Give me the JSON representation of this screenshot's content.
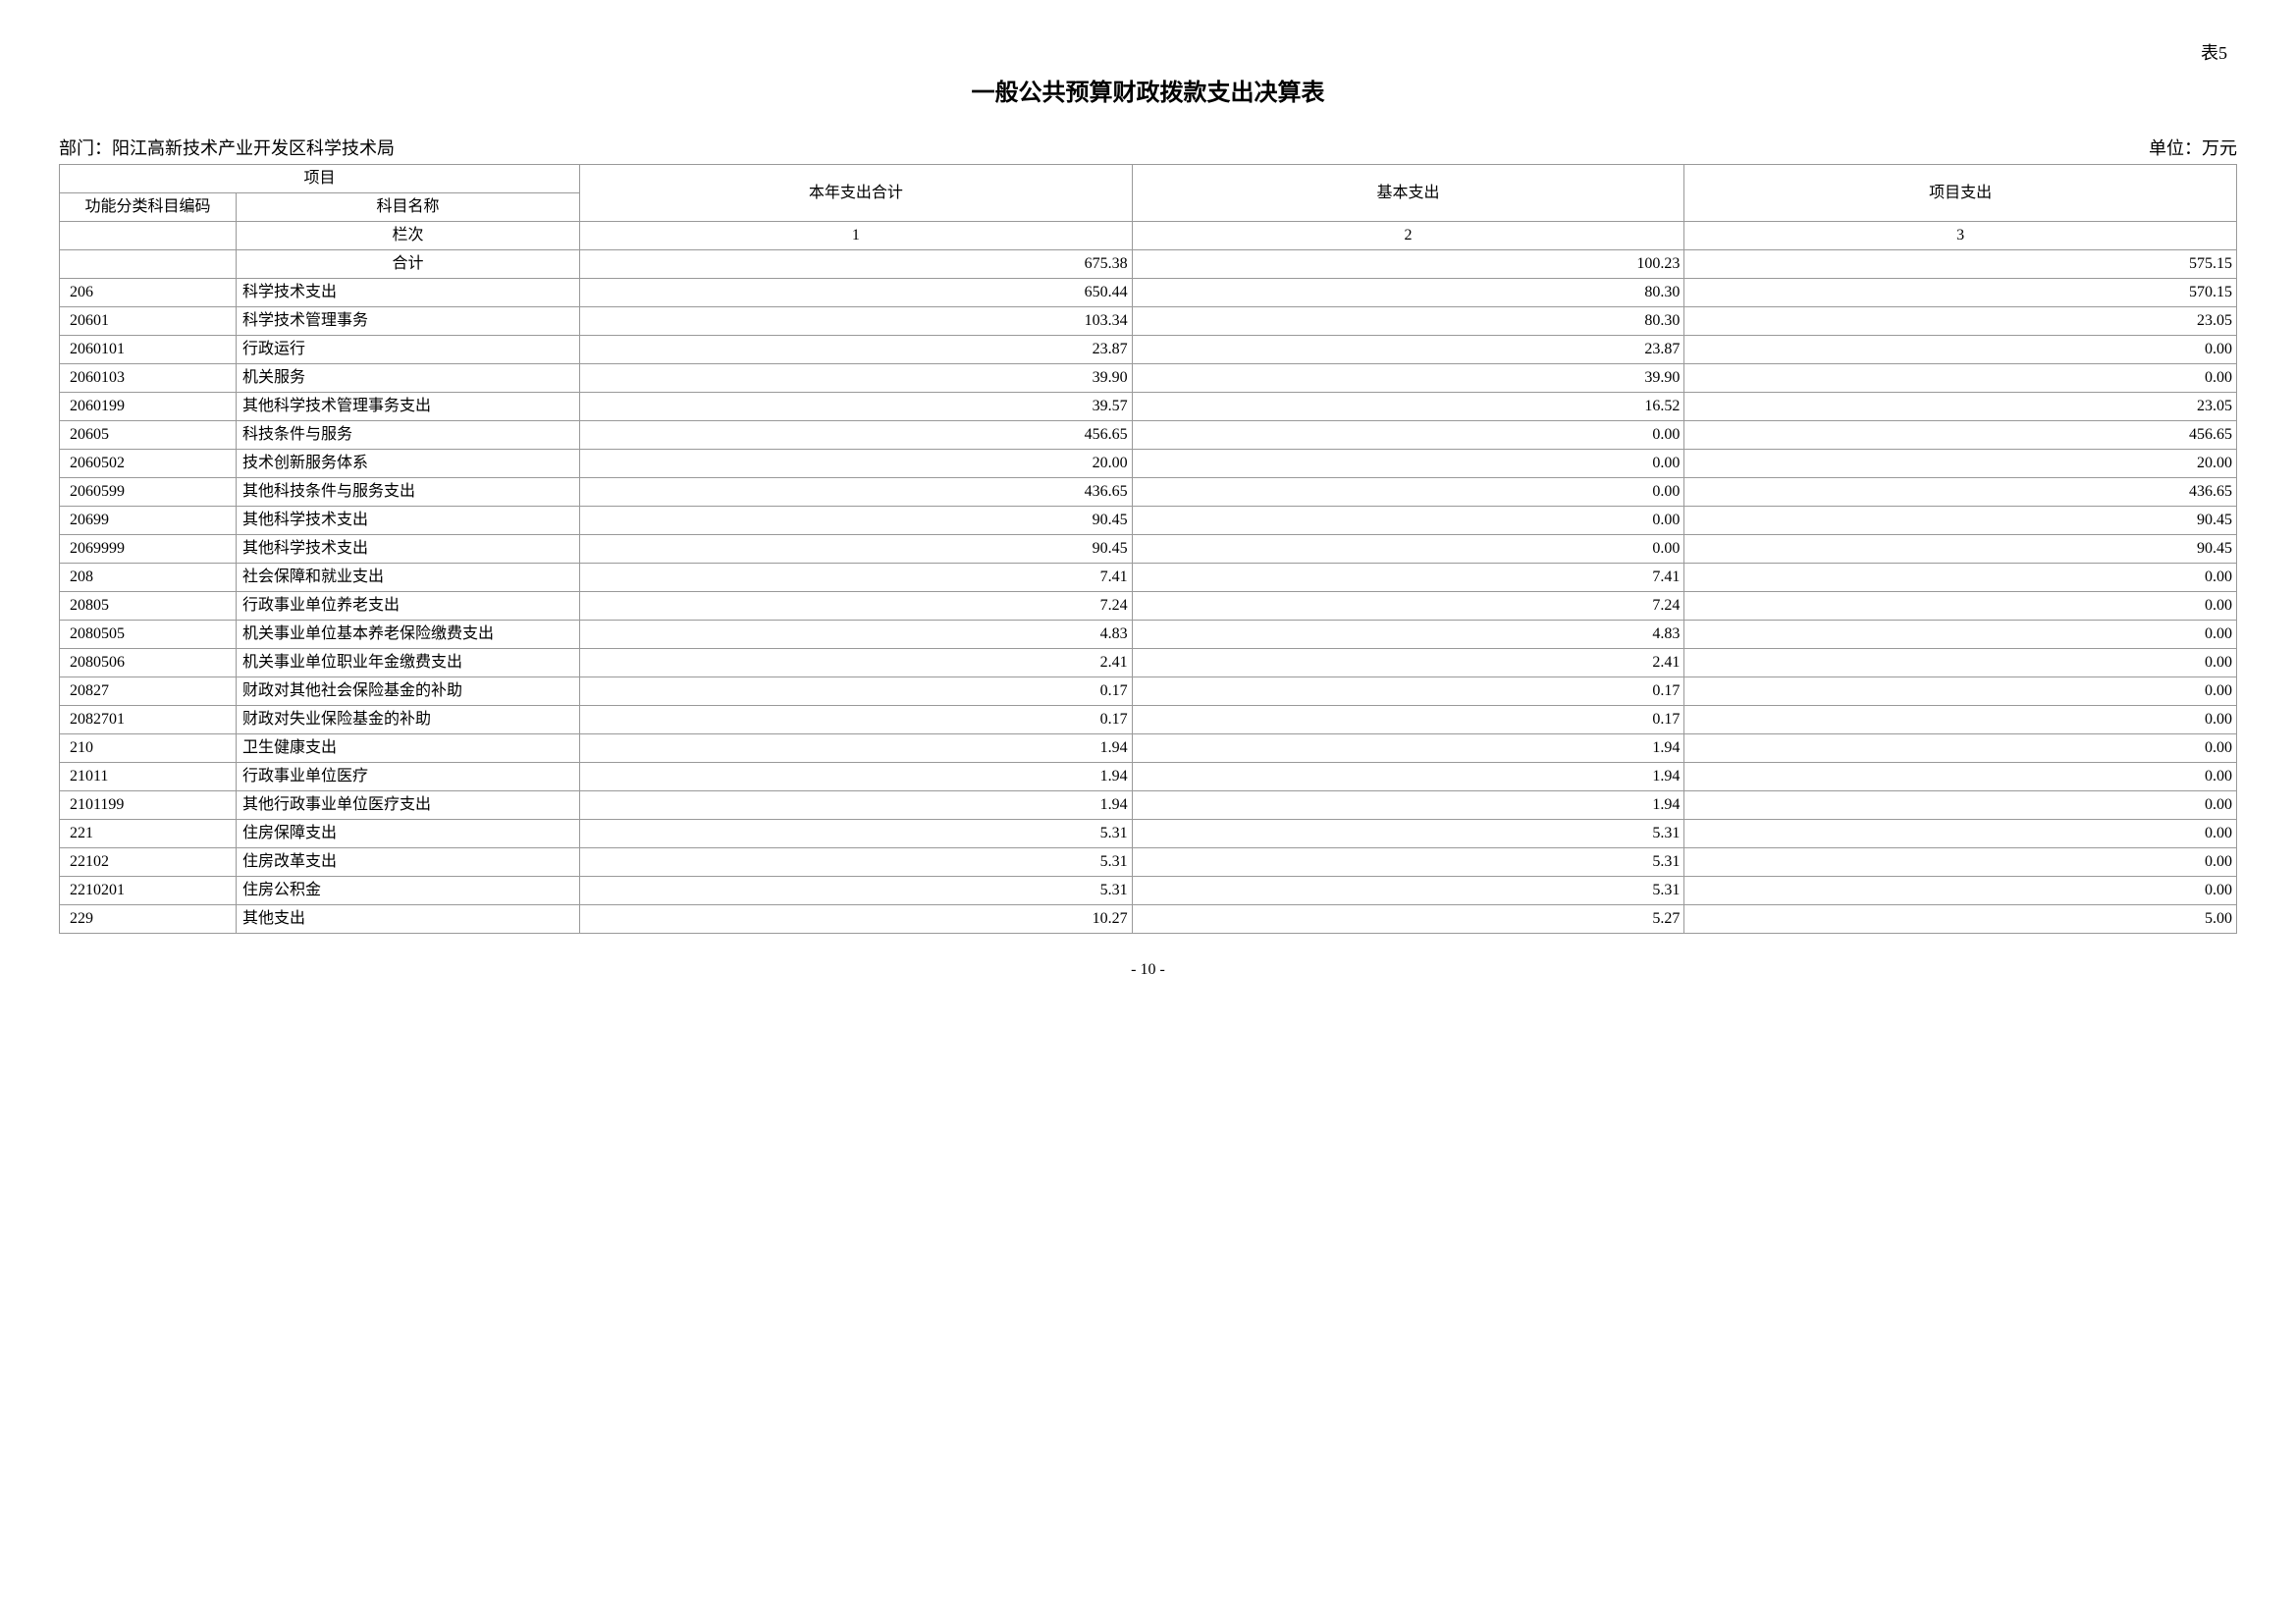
{
  "table_number": "表5",
  "title": "一般公共预算财政拨款支出决算表",
  "department_label": "部门：",
  "department_name": "阳江高新技术产业开发区科学技术局",
  "unit_label": "单位：万元",
  "page_number": "- 10 -",
  "header": {
    "project": "项目",
    "code": "功能分类科目编码",
    "name": "科目名称",
    "total": "本年支出合计",
    "basic": "基本支出",
    "project_exp": "项目支出",
    "column_order": "栏次",
    "col1": "1",
    "col2": "2",
    "col3": "3",
    "subtotal": "合计"
  },
  "totals": {
    "total": "675.38",
    "basic": "100.23",
    "project": "575.15"
  },
  "rows": [
    {
      "code": "206",
      "name": "科学技术支出",
      "total": "650.44",
      "basic": "80.30",
      "project": "570.15"
    },
    {
      "code": "20601",
      "name": "科学技术管理事务",
      "total": "103.34",
      "basic": "80.30",
      "project": "23.05"
    },
    {
      "code": "2060101",
      "name": "行政运行",
      "total": "23.87",
      "basic": "23.87",
      "project": "0.00"
    },
    {
      "code": "2060103",
      "name": "机关服务",
      "total": "39.90",
      "basic": "39.90",
      "project": "0.00"
    },
    {
      "code": "2060199",
      "name": "其他科学技术管理事务支出",
      "total": "39.57",
      "basic": "16.52",
      "project": "23.05"
    },
    {
      "code": "20605",
      "name": "科技条件与服务",
      "total": "456.65",
      "basic": "0.00",
      "project": "456.65"
    },
    {
      "code": "2060502",
      "name": "技术创新服务体系",
      "total": "20.00",
      "basic": "0.00",
      "project": "20.00"
    },
    {
      "code": "2060599",
      "name": "其他科技条件与服务支出",
      "total": "436.65",
      "basic": "0.00",
      "project": "436.65"
    },
    {
      "code": "20699",
      "name": "其他科学技术支出",
      "total": "90.45",
      "basic": "0.00",
      "project": "90.45"
    },
    {
      "code": "2069999",
      "name": "其他科学技术支出",
      "total": "90.45",
      "basic": "0.00",
      "project": "90.45"
    },
    {
      "code": "208",
      "name": "社会保障和就业支出",
      "total": "7.41",
      "basic": "7.41",
      "project": "0.00"
    },
    {
      "code": "20805",
      "name": "行政事业单位养老支出",
      "total": "7.24",
      "basic": "7.24",
      "project": "0.00"
    },
    {
      "code": "2080505",
      "name": "机关事业单位基本养老保险缴费支出",
      "total": "4.83",
      "basic": "4.83",
      "project": "0.00"
    },
    {
      "code": "2080506",
      "name": "机关事业单位职业年金缴费支出",
      "total": "2.41",
      "basic": "2.41",
      "project": "0.00"
    },
    {
      "code": "20827",
      "name": "财政对其他社会保险基金的补助",
      "total": "0.17",
      "basic": "0.17",
      "project": "0.00"
    },
    {
      "code": "2082701",
      "name": "财政对失业保险基金的补助",
      "total": "0.17",
      "basic": "0.17",
      "project": "0.00"
    },
    {
      "code": "210",
      "name": "卫生健康支出",
      "total": "1.94",
      "basic": "1.94",
      "project": "0.00"
    },
    {
      "code": "21011",
      "name": "行政事业单位医疗",
      "total": "1.94",
      "basic": "1.94",
      "project": "0.00"
    },
    {
      "code": "2101199",
      "name": "其他行政事业单位医疗支出",
      "total": "1.94",
      "basic": "1.94",
      "project": "0.00"
    },
    {
      "code": "221",
      "name": "住房保障支出",
      "total": "5.31",
      "basic": "5.31",
      "project": "0.00"
    },
    {
      "code": "22102",
      "name": "住房改革支出",
      "total": "5.31",
      "basic": "5.31",
      "project": "0.00"
    },
    {
      "code": "2210201",
      "name": "住房公积金",
      "total": "5.31",
      "basic": "5.31",
      "project": "0.00"
    },
    {
      "code": "229",
      "name": "其他支出",
      "total": "10.27",
      "basic": "5.27",
      "project": "5.00"
    }
  ]
}
